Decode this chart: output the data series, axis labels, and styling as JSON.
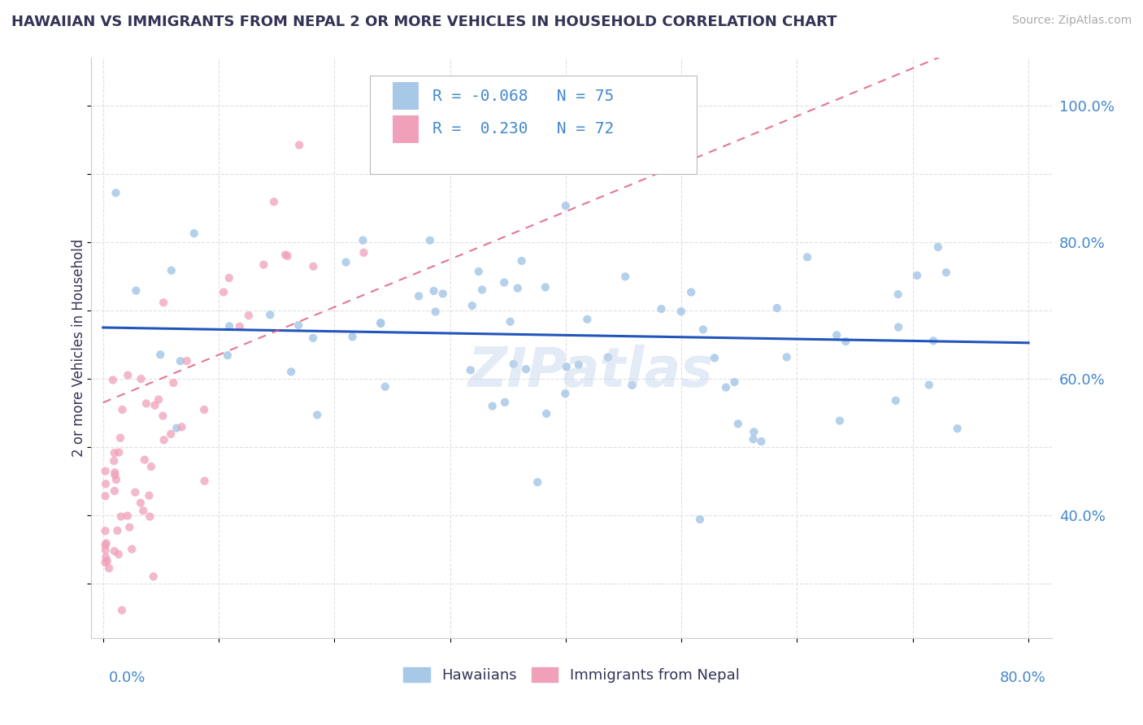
{
  "title": "HAWAIIAN VS IMMIGRANTS FROM NEPAL 2 OR MORE VEHICLES IN HOUSEHOLD CORRELATION CHART",
  "source": "Source: ZipAtlas.com",
  "ylabel": "2 or more Vehicles in Household",
  "xlim": [
    -0.01,
    0.82
  ],
  "ylim": [
    0.22,
    1.07
  ],
  "x_ticks": [
    0.0,
    0.1,
    0.2,
    0.3,
    0.4,
    0.5,
    0.6,
    0.7,
    0.8
  ],
  "y_ticks": [
    0.3,
    0.4,
    0.5,
    0.6,
    0.7,
    0.8,
    0.9,
    1.0
  ],
  "y_tick_labels_right": [
    "",
    "40.0%",
    "",
    "60.0%",
    "",
    "80.0%",
    "",
    "100.0%"
  ],
  "legend_labels": [
    "Hawaiians",
    "Immigrants from Nepal"
  ],
  "hawaiian_color": "#a8c8e8",
  "nepal_color": "#f0a0b8",
  "hawaiian_line_color": "#2255bb",
  "nepal_line_color": "#e05575",
  "R_hawaiian": -0.068,
  "N_hawaiian": 75,
  "R_nepal": 0.23,
  "N_nepal": 72,
  "title_color": "#333355",
  "axis_label_color": "#333355",
  "tick_color": "#4488cc",
  "source_color": "#aaaaaa",
  "grid_color": "#dddddd",
  "watermark_color": "#c8d8f0",
  "watermark_alpha": 0.5
}
